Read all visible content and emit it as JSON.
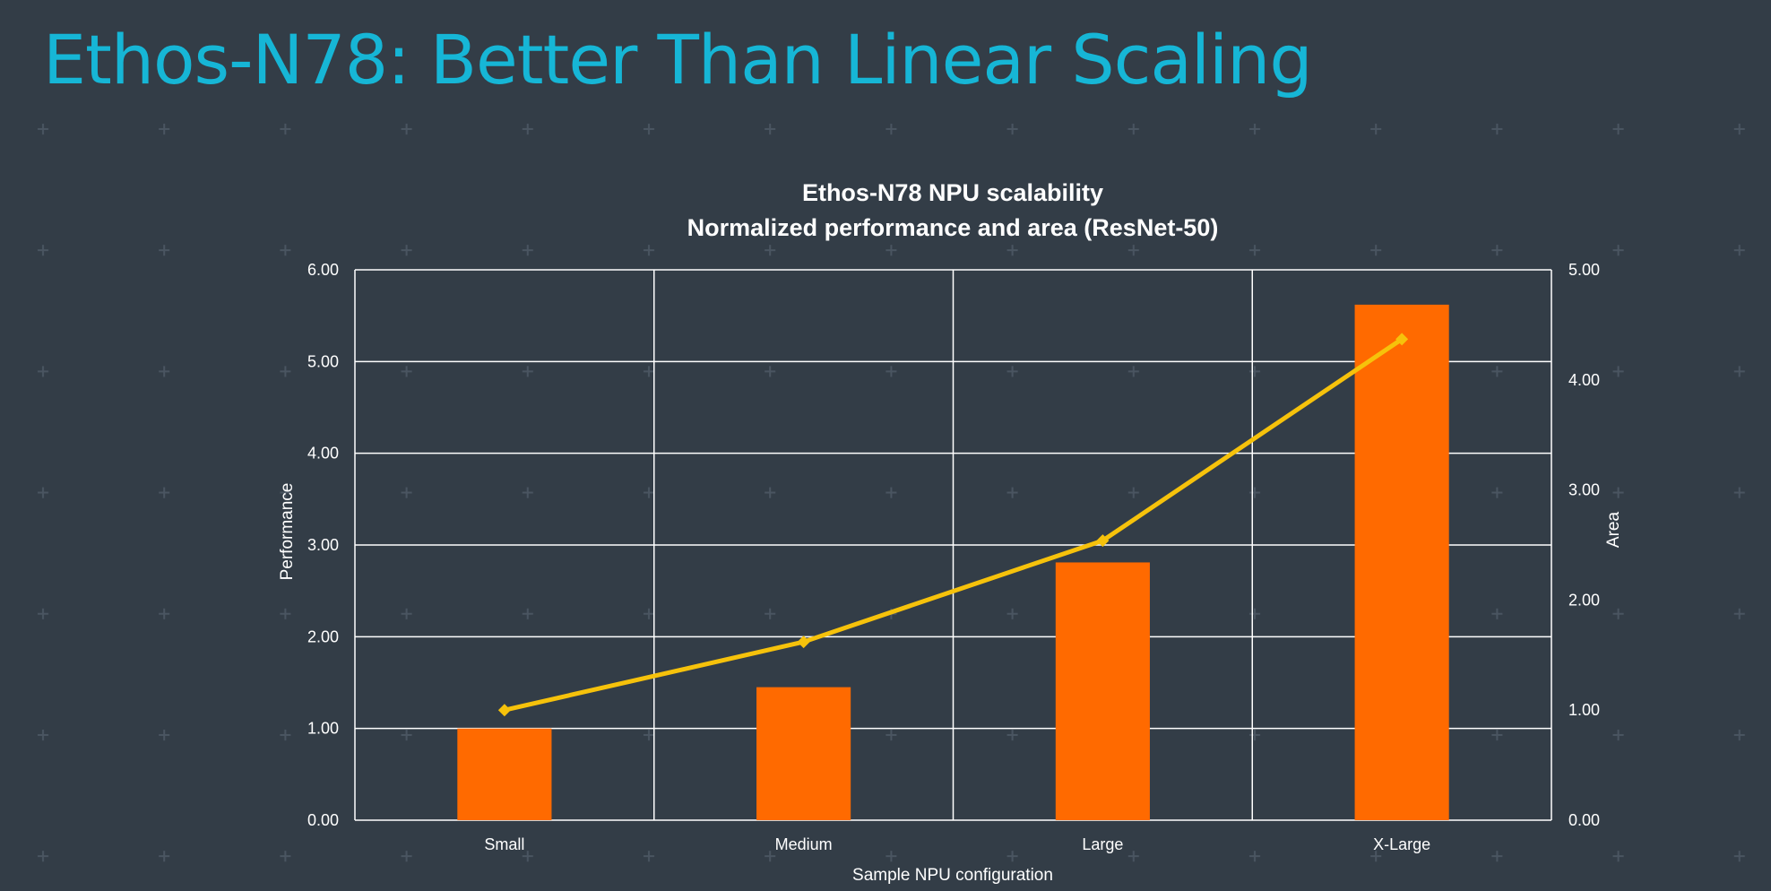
{
  "slide": {
    "title": "Ethos-N78: Better Than Linear Scaling"
  },
  "chart_data": {
    "type": "bar+line",
    "title": "Ethos-N78 NPU scalability",
    "subtitle": "Normalized performance and area (ResNet-50)",
    "xlabel": "Sample NPU configuration",
    "ylabel": "Performance",
    "y2label": "Area",
    "categories": [
      "Small",
      "Medium",
      "Large",
      "X-Large"
    ],
    "ylim": [
      0,
      6
    ],
    "y2lim": [
      0,
      5
    ],
    "yticks": [
      "0.00",
      "1.00",
      "2.00",
      "3.00",
      "4.00",
      "5.00",
      "6.00"
    ],
    "y2ticks": [
      "0.00",
      "1.00",
      "2.00",
      "3.00",
      "4.00",
      "5.00"
    ],
    "grid": true,
    "series": [
      {
        "name": "Performance",
        "type": "bar",
        "axis": "left",
        "color": "#ff6a00",
        "values": [
          1.0,
          1.45,
          2.81,
          5.62
        ]
      },
      {
        "name": "Area",
        "type": "line",
        "axis": "right",
        "color": "#f6c20b",
        "values": [
          1.0,
          1.62,
          2.54,
          4.37
        ]
      }
    ]
  }
}
